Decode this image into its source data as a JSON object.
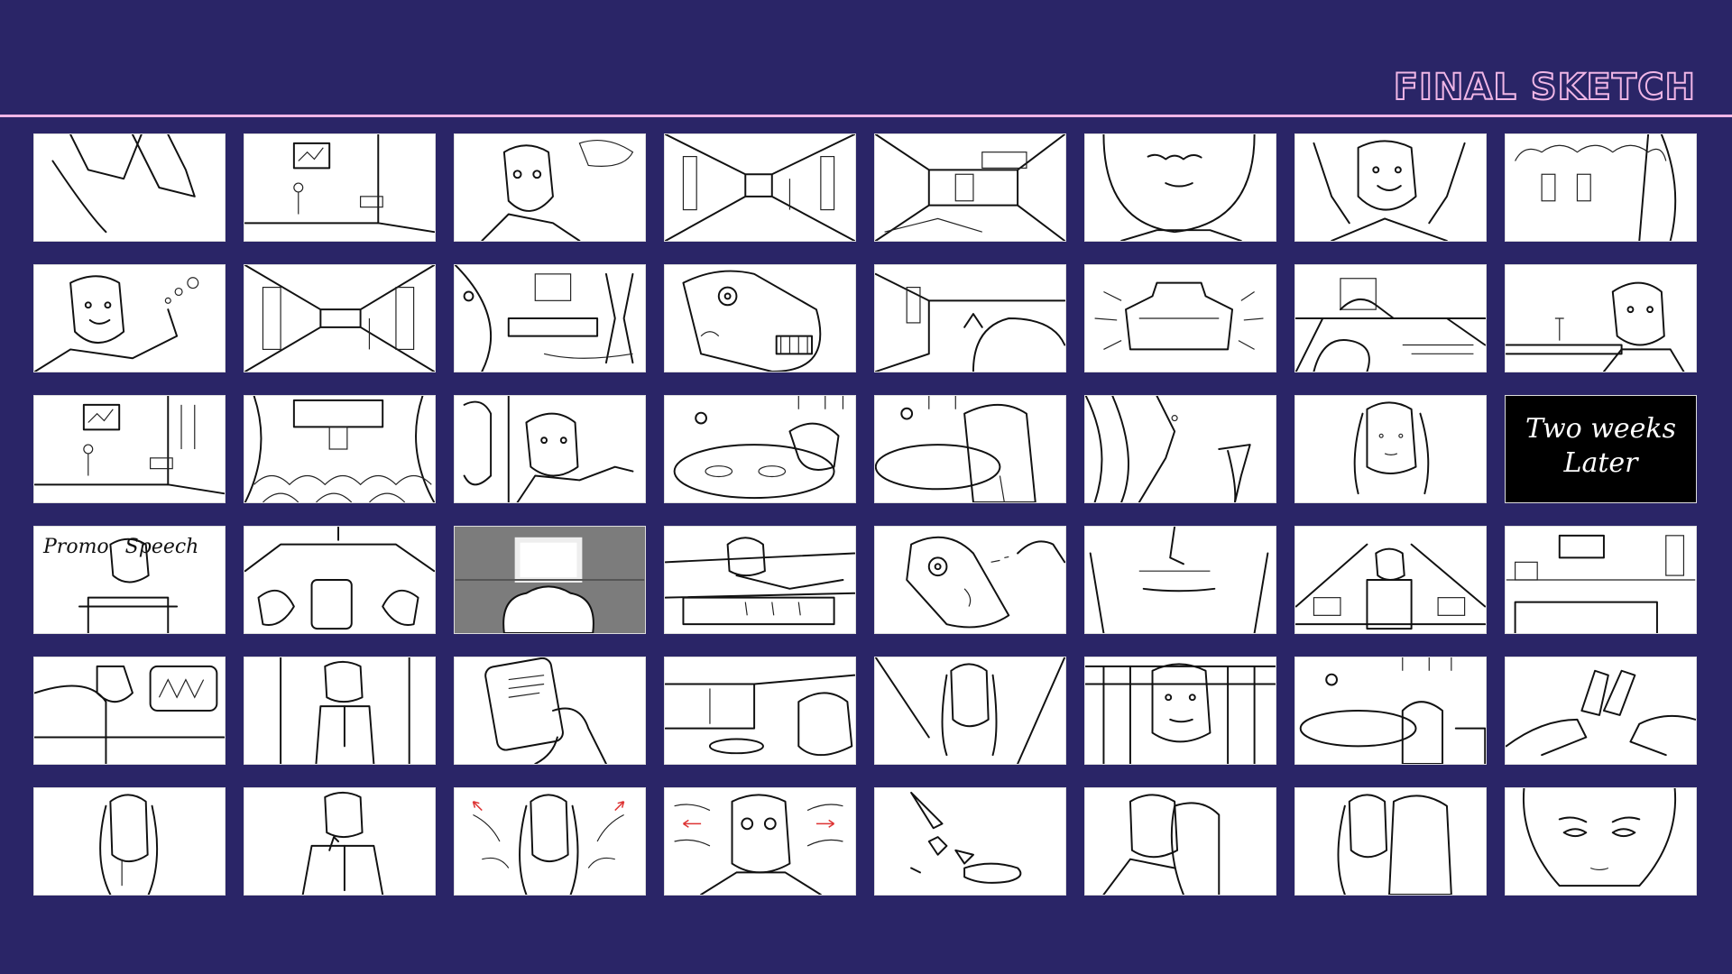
{
  "title": "FINAL SKETCH",
  "text_panels": {
    "two_weeks_later": "Two weeks Later",
    "promo_speech_1": "Promo",
    "promo_speech_2": "Speech"
  },
  "colors": {
    "background": "#2a2567",
    "accent": "#f0b6e6"
  }
}
